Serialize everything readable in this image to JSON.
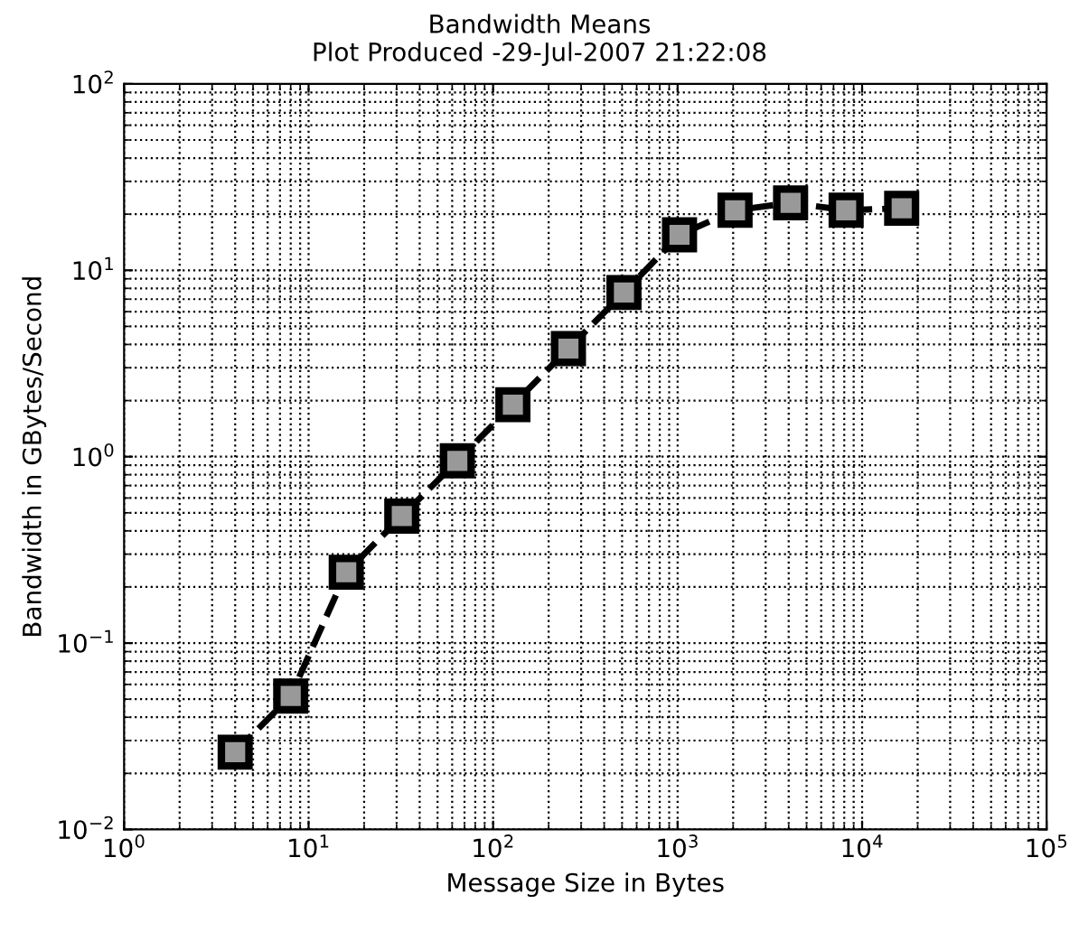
{
  "chart_data": {
    "type": "line",
    "title": "Bandwidth Means",
    "subtitle": "Plot Produced -29-Jul-2007 21:22:08",
    "xlabel": "Message Size in Bytes",
    "ylabel": "Bandwidth in GBytes/Second",
    "x": [
      4,
      8,
      16,
      32,
      64,
      128,
      256,
      512,
      1024,
      2048,
      4096,
      8192,
      16384
    ],
    "series": [
      {
        "color": "#000000",
        "values": [
          0.026,
          0.052,
          0.24,
          0.48,
          0.95,
          1.9,
          3.8,
          7.6,
          15.5,
          21,
          23,
          21,
          21.5
        ]
      }
    ],
    "log": "xy",
    "xlim": [
      1,
      100000
    ],
    "ylim": [
      0.01,
      100
    ],
    "xticks": [
      {
        "value": 1,
        "label": "10$^{0}$"
      },
      {
        "value": 10,
        "label": "10$^{1}$"
      },
      {
        "value": 100,
        "label": "10$^{2}$"
      },
      {
        "value": 1000,
        "label": "10$^{3}$"
      },
      {
        "value": 10000,
        "label": "10$^{4}$"
      },
      {
        "value": 100000,
        "label": "10$^{5}$"
      }
    ],
    "yticks": [
      {
        "value": 0.01,
        "label": "10$^{−2}$"
      },
      {
        "value": 0.1,
        "label": "10$^{−1}$"
      },
      {
        "value": 1,
        "label": "10$^{0}$"
      },
      {
        "value": 10,
        "label": "10$^{1}$"
      },
      {
        "value": 100,
        "label": "10$^{2}$"
      }
    ],
    "grid": true,
    "marker": "square",
    "line_style": "dashed"
  }
}
